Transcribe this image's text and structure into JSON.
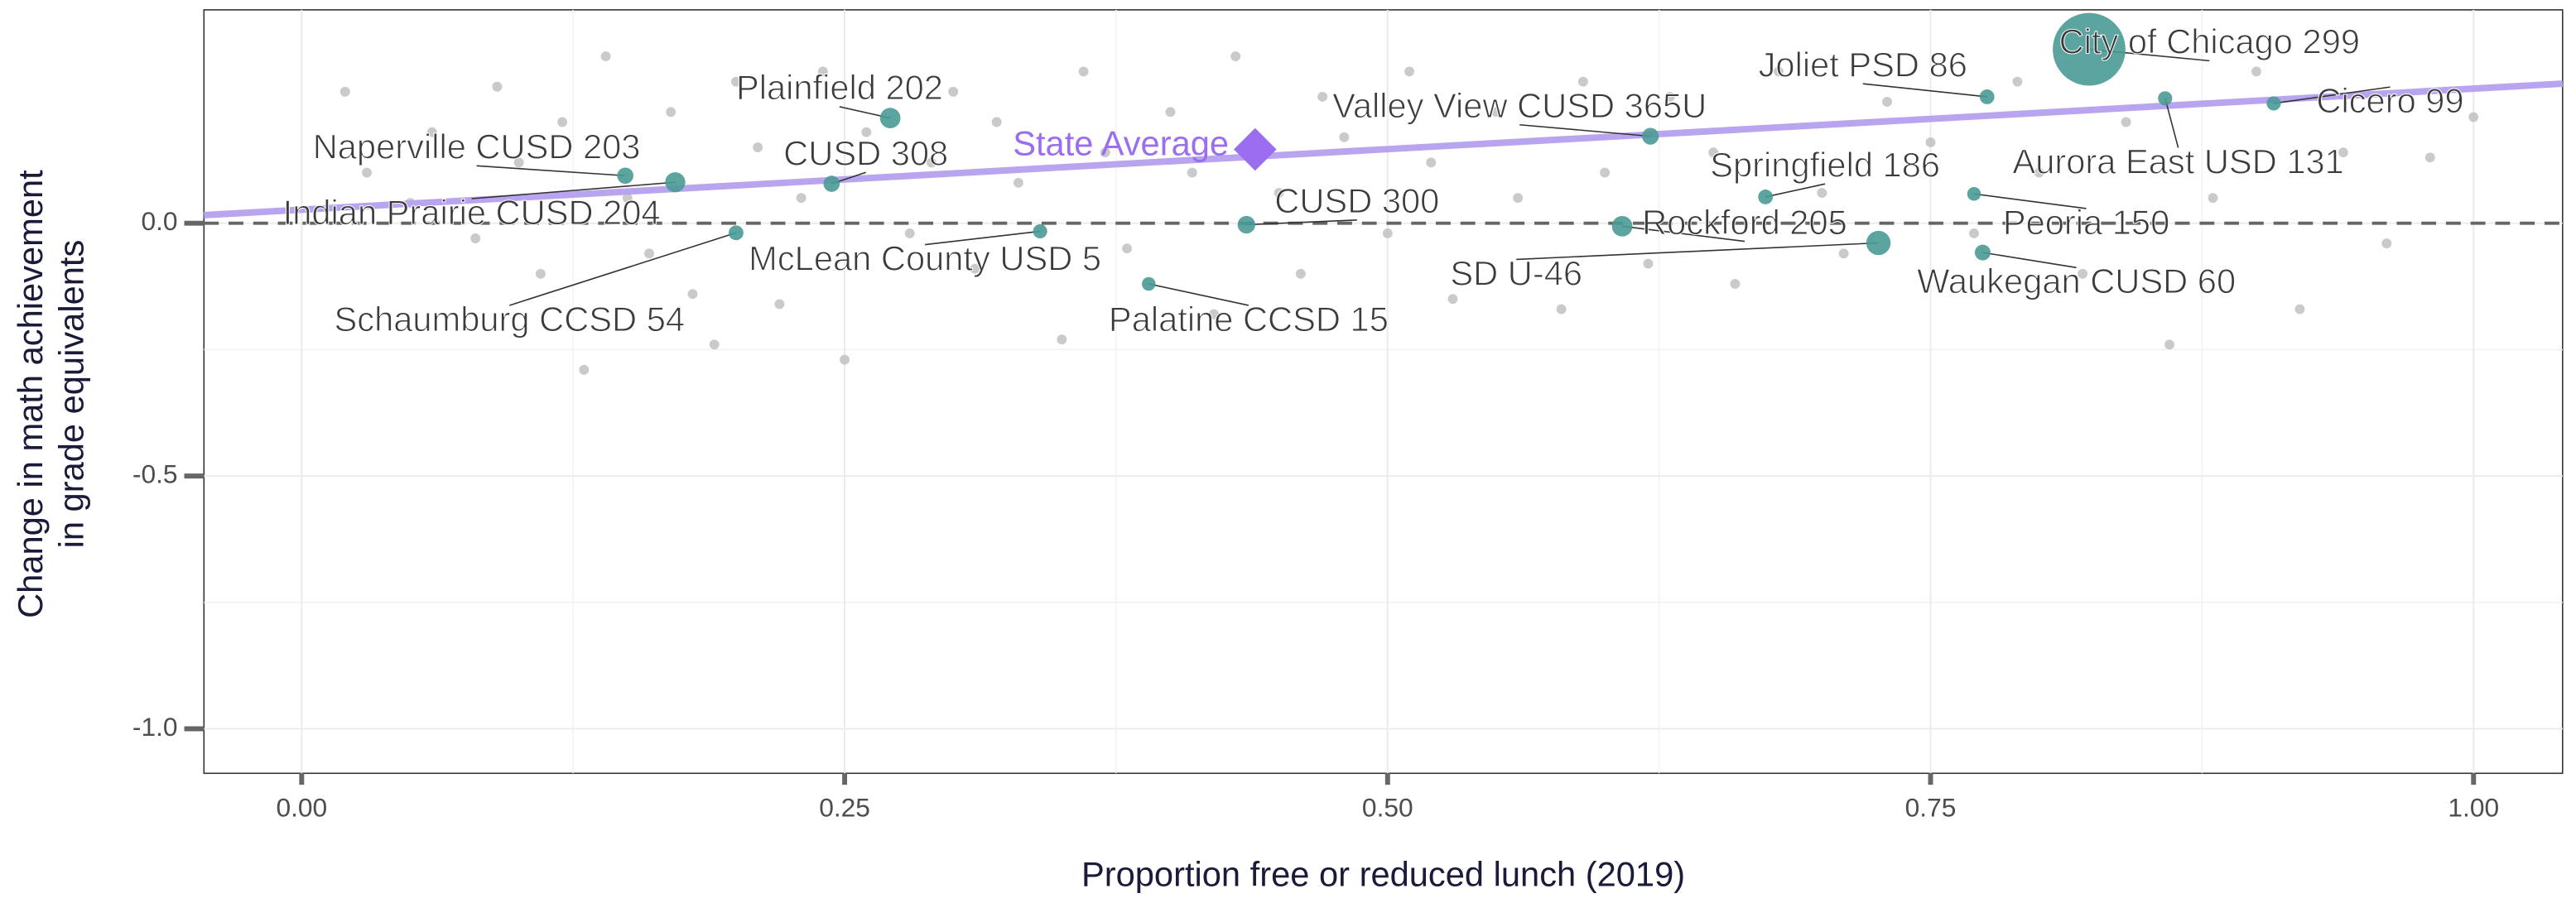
{
  "chart_data": {
    "type": "scatter",
    "x_label": "Proportion free or reduced lunch (2019)",
    "y_label": [
      "Change in math achievement",
      "in grade equivalents"
    ],
    "xlim": [
      -0.045,
      1.041
    ],
    "ylim": [
      -1.088,
      0.422
    ],
    "xticks": [
      {
        "value": 0,
        "label": "0.00"
      },
      0.25,
      {
        "value": 0.5,
        "label": "0.50"
      },
      0.75,
      {
        "value": 1,
        "label": "1.00"
      }
    ],
    "yticks": [
      {
        "value": -1,
        "label": "-1.0"
      },
      -0.5,
      {
        "value": 0,
        "label": "0.0"
      }
    ],
    "grid": true,
    "hline": 0,
    "trend": {
      "x": [
        -0.045,
        1.041
      ],
      "y": [
        0.016,
        0.276
      ],
      "color": "#b9a4f0"
    },
    "state_average": {
      "label": "State Average",
      "x": 0.439,
      "y": 0.146,
      "color": "#9b6ef0"
    },
    "series": [
      {
        "color": "#bdbdbd",
        "x": [
          0.02,
          0.03,
          0.05,
          0.06,
          0.08,
          0.09,
          0.1,
          0.11,
          0.12,
          0.13,
          0.14,
          0.15,
          0.16,
          0.17,
          0.18,
          0.19,
          0.2,
          0.21,
          0.22,
          0.23,
          0.24,
          0.25,
          0.26,
          0.28,
          0.29,
          0.3,
          0.31,
          0.32,
          0.33,
          0.35,
          0.36,
          0.37,
          0.38,
          0.4,
          0.41,
          0.42,
          0.43,
          0.45,
          0.46,
          0.47,
          0.48,
          0.5,
          0.51,
          0.52,
          0.53,
          0.55,
          0.56,
          0.58,
          0.59,
          0.6,
          0.62,
          0.63,
          0.65,
          0.66,
          0.68,
          0.7,
          0.71,
          0.73,
          0.75,
          0.77,
          0.79,
          0.8,
          0.82,
          0.84,
          0.86,
          0.88,
          0.9,
          0.92,
          0.94,
          0.96,
          0.98,
          1.0
        ],
        "y": [
          0.26,
          0.1,
          0.04,
          0.18,
          -0.03,
          0.27,
          0.12,
          -0.1,
          0.2,
          -0.29,
          0.33,
          0.05,
          -0.06,
          0.22,
          -0.14,
          -0.24,
          0.28,
          0.15,
          -0.16,
          0.05,
          0.3,
          -0.27,
          0.18,
          -0.02,
          0.12,
          0.26,
          -0.09,
          0.2,
          0.08,
          -0.23,
          0.3,
          0.14,
          -0.05,
          0.22,
          0.1,
          -0.18,
          0.33,
          0.06,
          -0.1,
          0.25,
          0.17,
          -0.02,
          0.3,
          0.12,
          -0.15,
          0.22,
          0.05,
          -0.17,
          0.28,
          0.1,
          -0.08,
          0.25,
          0.14,
          -0.12,
          0.3,
          0.06,
          -0.06,
          0.24,
          0.16,
          -0.02,
          0.28,
          0.1,
          -0.1,
          0.2,
          -0.24,
          0.05,
          0.3,
          -0.17,
          0.14,
          -0.04,
          0.13,
          0.21
        ]
      },
      {
        "color": "#4a9a96",
        "labels": [
          "City of Chicago 299",
          "Joliet PSD 86",
          "Cicero 99",
          "Aurora East USD 131",
          "Valley View CUSD 365U",
          "Springfield 186",
          "Peoria 150",
          "Rockford 205",
          "SD U-46",
          "Waukegan CUSD 60",
          "CUSD 300",
          "Palatine CCSD 15",
          "McLean County USD 5",
          "Schaumburg CCSD 54",
          "Plainfield 202",
          "CUSD 308",
          "Naperville CUSD 203",
          "Indian Prairie CUSD 204"
        ],
        "x": [
          0.823,
          0.776,
          0.908,
          0.858,
          0.621,
          0.674,
          0.77,
          0.608,
          0.726,
          0.774,
          0.435,
          0.39,
          0.34,
          0.2,
          0.271,
          0.244,
          0.149,
          0.172
        ],
        "y": [
          0.344,
          0.25,
          0.237,
          0.247,
          0.172,
          0.052,
          0.058,
          -0.006,
          -0.039,
          -0.058,
          -0.003,
          -0.12,
          -0.016,
          -0.019,
          0.208,
          0.078,
          0.094,
          0.081
        ],
        "sizes": [
          340,
          14,
          13,
          13,
          18,
          14,
          12,
          27,
          38,
          16,
          20,
          12,
          13,
          14,
          27,
          17,
          17,
          26
        ]
      }
    ]
  }
}
